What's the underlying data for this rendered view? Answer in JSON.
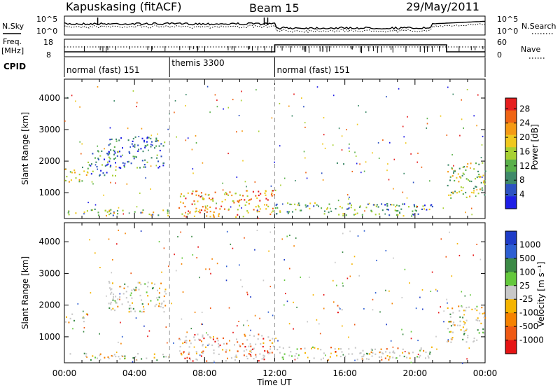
{
  "header": {
    "radar": "Kapuskasing (fitACF)",
    "beam": "Beam 15",
    "date": "29/May/2011"
  },
  "noise_panel": {
    "left_label": "N.Sky",
    "left_ticks": [
      "10^5",
      "10^0"
    ],
    "right_label": "N.Search",
    "right_ticks": [
      "10^5",
      "10^0"
    ]
  },
  "freq_panel": {
    "left_label_top": "Freq.",
    "left_label_bottom": "[MHz]",
    "left_ticks": [
      "18",
      "8"
    ],
    "right_label": "Nave",
    "right_ticks": [
      "60",
      "0"
    ]
  },
  "cpid": {
    "label": "CPID",
    "segments": [
      {
        "label": "normal (fast) 151",
        "start": 0,
        "end": 6
      },
      {
        "label": "themis 3300",
        "start": 6,
        "end": 12
      },
      {
        "label": "normal (fast) 151",
        "start": 12,
        "end": 24
      }
    ]
  },
  "time_axis": {
    "title": "Time UT",
    "ticks": [
      "00:00",
      "04:00",
      "08:00",
      "12:00",
      "16:00",
      "20:00",
      "00:00"
    ],
    "range_hours": [
      0,
      24
    ]
  },
  "chart_data": [
    {
      "type": "heatmap",
      "name": "power",
      "ylabel": "Slant Range [km]",
      "yticks": [
        "1000",
        "2000",
        "3000",
        "4000"
      ],
      "ylim": [
        180,
        4600
      ],
      "colorbar": {
        "label": "Power [dB]",
        "ticks": [
          "4",
          "8",
          "12",
          "16",
          "20",
          "24",
          "28"
        ],
        "range": [
          0,
          31
        ],
        "colors": [
          "#1e1ee6",
          "#2d52c2",
          "#3f8a6a",
          "#5ab04a",
          "#a8d032",
          "#f0c81e",
          "#f59a14",
          "#ef6414",
          "#e61e1e"
        ]
      },
      "echo_regions": [
        {
          "t": [
            0.0,
            1.3
          ],
          "r": [
            1350,
            1850
          ],
          "level": 0.5
        },
        {
          "t": [
            1.3,
            3.0
          ],
          "r": [
            1550,
            2350
          ],
          "level": 0.3
        },
        {
          "t": [
            2.5,
            5.8
          ],
          "r": [
            1800,
            2800
          ],
          "level": 0.2
        },
        {
          "t": [
            0.0,
            6.0
          ],
          "r": [
            280,
            500
          ],
          "level": 0.45
        },
        {
          "t": [
            6.5,
            12.0
          ],
          "r": [
            250,
            1100
          ],
          "level": 0.72
        },
        {
          "t": [
            12.0,
            21.0
          ],
          "r": [
            280,
            700
          ],
          "level": 0.35
        },
        {
          "t": [
            15.5,
            15.9
          ],
          "r": [
            1800,
            2000
          ],
          "level": 0.25
        },
        {
          "t": [
            18.8,
            19.3
          ],
          "r": [
            420,
            520
          ],
          "level": 0.55
        },
        {
          "t": [
            21.8,
            24.0
          ],
          "r": [
            850,
            2000
          ],
          "level": 0.5
        }
      ]
    },
    {
      "type": "heatmap",
      "name": "velocity",
      "ylabel": "Slant Range [km]",
      "yticks": [
        "1000",
        "2000",
        "3000",
        "4000"
      ],
      "ylim": [
        180,
        4600
      ],
      "colorbar": {
        "label": "Velocity [m s⁻¹]",
        "ticks": [
          "1000",
          "500",
          "100",
          "25",
          "-25",
          "-100",
          "-500",
          "-1000"
        ],
        "range": [
          -1300,
          1300
        ],
        "colors": [
          "#1e3cc8",
          "#2d5fd2",
          "#3c8a46",
          "#64c83c",
          "#c8c8c8",
          "#f5b400",
          "#f58200",
          "#ef5a14",
          "#e61414"
        ]
      },
      "echo_regions": [
        {
          "t": [
            0.0,
            1.3
          ],
          "r": [
            1450,
            1750
          ],
          "level": 0.5
        },
        {
          "t": [
            2.5,
            5.8
          ],
          "r": [
            1800,
            2800
          ],
          "level": 0.5
        },
        {
          "t": [
            0.0,
            6.0
          ],
          "r": [
            280,
            500
          ],
          "level": 0.5
        },
        {
          "t": [
            6.5,
            12.0
          ],
          "r": [
            250,
            1100
          ],
          "level": 0.75
        },
        {
          "t": [
            12.0,
            21.0
          ],
          "r": [
            280,
            700
          ],
          "level": 0.55
        },
        {
          "t": [
            15.5,
            15.9
          ],
          "r": [
            1700,
            2050
          ],
          "level": 0.7
        },
        {
          "t": [
            18.8,
            19.3
          ],
          "r": [
            420,
            520
          ],
          "level": 0.75
        },
        {
          "t": [
            21.8,
            24.0
          ],
          "r": [
            850,
            2000
          ],
          "level": 0.5
        }
      ]
    }
  ]
}
